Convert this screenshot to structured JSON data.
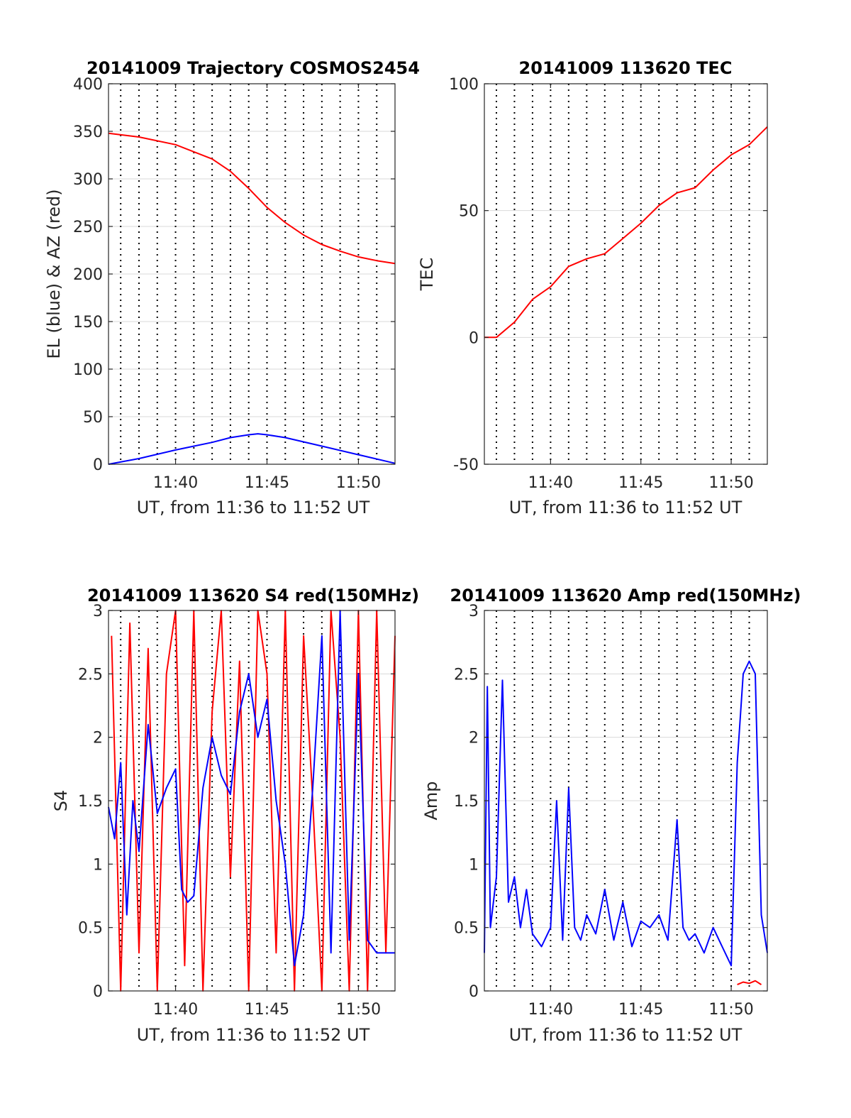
{
  "chart_data": [
    {
      "type": "line",
      "title": "20141009 Trajectory COSMOS2454",
      "xlabel": "UT, from 11:36 to 11:52 UT",
      "ylabel": "EL (blue) & AZ (red)",
      "xlim": [
        "11:36:20",
        "11:52:00"
      ],
      "ylim": [
        0,
        400
      ],
      "yticks": [
        0,
        50,
        100,
        150,
        200,
        250,
        300,
        350,
        400
      ],
      "xticks": [
        "11:40",
        "11:45",
        "11:50"
      ],
      "grid": "on",
      "series": [
        {
          "color": "#ff0000",
          "kind": "azimuth",
          "x": [
            "11:36:20",
            "11:38:00",
            "11:40:00",
            "11:42:00",
            "11:43:00",
            "11:44:00",
            "11:45:00",
            "11:46:00",
            "11:47:00",
            "11:48:00",
            "11:49:00",
            "11:50:00",
            "11:51:00",
            "11:52:00"
          ],
          "y": [
            348,
            344,
            336,
            321,
            308,
            290,
            270,
            254,
            241,
            231,
            224,
            218,
            214,
            211
          ]
        },
        {
          "color": "#0000ff",
          "kind": "elevation",
          "x": [
            "11:36:20",
            "11:38:00",
            "11:40:00",
            "11:42:00",
            "11:43:00",
            "11:44:00",
            "11:44:30",
            "11:45:00",
            "11:46:00",
            "11:48:00",
            "11:50:00",
            "11:52:00"
          ],
          "y": [
            0,
            6,
            15,
            23,
            28,
            31,
            32,
            31,
            28,
            19,
            10,
            1
          ]
        }
      ]
    },
    {
      "type": "line",
      "title": "20141009 113620 TEC",
      "xlabel": "UT, from 11:36 to 11:52 UT",
      "ylabel": "TEC",
      "xlim": [
        "11:36:20",
        "11:52:00"
      ],
      "ylim": [
        -50,
        100
      ],
      "yticks": [
        -50,
        0,
        50,
        100
      ],
      "xticks": [
        "11:40",
        "11:45",
        "11:50"
      ],
      "grid": "on",
      "series": [
        {
          "color": "#ff0000",
          "x": [
            "11:36:20",
            "11:37:00",
            "11:38:00",
            "11:39:00",
            "11:40:00",
            "11:41:00",
            "11:42:00",
            "11:43:00",
            "11:44:00",
            "11:45:00",
            "11:46:00",
            "11:47:00",
            "11:48:00",
            "11:49:00",
            "11:50:00",
            "11:51:00",
            "11:52:00"
          ],
          "y": [
            0,
            0,
            6,
            15,
            20,
            28,
            31,
            33,
            39,
            45,
            52,
            57,
            59,
            66,
            72,
            76,
            83
          ]
        }
      ]
    },
    {
      "type": "line",
      "title": "20141009 113620 S4 red(150MHz)",
      "xlabel": "UT, from 11:36 to 11:52 UT",
      "ylabel": "S4",
      "xlim": [
        "11:36:20",
        "11:52:00"
      ],
      "ylim": [
        0,
        3
      ],
      "yticks": [
        0,
        0.5,
        1,
        1.5,
        2,
        2.5,
        3
      ],
      "xticks": [
        "11:40",
        "11:45",
        "11:50"
      ],
      "grid": "on",
      "series": [
        {
          "color": "#ff0000",
          "x": [
            "11:36:30",
            "11:37:00",
            "11:37:30",
            "11:38:00",
            "11:38:30",
            "11:39:00",
            "11:39:30",
            "11:40:00",
            "11:40:30",
            "11:41:00",
            "11:41:30",
            "11:42:00",
            "11:42:30",
            "11:43:00",
            "11:43:30",
            "11:44:00",
            "11:44:30",
            "11:45:00",
            "11:45:30",
            "11:46:00",
            "11:46:30",
            "11:47:00",
            "11:47:30",
            "11:48:00",
            "11:48:30",
            "11:49:00",
            "11:49:30",
            "11:50:00",
            "11:50:30",
            "11:51:00",
            "11:51:30",
            "11:52:00"
          ],
          "y": [
            2.8,
            0,
            2.9,
            0.3,
            2.7,
            0,
            2.5,
            3.0,
            0.2,
            3.0,
            0,
            2.2,
            3.0,
            0.9,
            2.6,
            0,
            3.0,
            2.5,
            0.3,
            3.0,
            0,
            2.8,
            1.5,
            0,
            3.0,
            2.0,
            0,
            3.0,
            0,
            3.0,
            0.3,
            2.8
          ]
        },
        {
          "color": "#0000ff",
          "x": [
            "11:36:20",
            "11:36:40",
            "11:37:00",
            "11:37:20",
            "11:37:40",
            "11:38:00",
            "11:38:30",
            "11:39:00",
            "11:39:30",
            "11:40:00",
            "11:40:20",
            "11:40:40",
            "11:41:00",
            "11:41:30",
            "11:42:00",
            "11:42:30",
            "11:43:00",
            "11:43:30",
            "11:44:00",
            "11:44:30",
            "11:45:00",
            "11:45:30",
            "11:46:00",
            "11:46:30",
            "11:47:00",
            "11:47:30",
            "11:48:00",
            "11:48:30",
            "11:49:00",
            "11:49:30",
            "11:50:00",
            "11:50:30",
            "11:51:00",
            "11:51:30",
            "11:52:00"
          ],
          "y": [
            1.45,
            1.2,
            1.8,
            0.6,
            1.5,
            1.1,
            2.1,
            1.4,
            1.6,
            1.75,
            0.8,
            0.7,
            0.75,
            1.6,
            2.0,
            1.7,
            1.55,
            2.2,
            2.5,
            2.0,
            2.3,
            1.5,
            1.0,
            0.2,
            0.6,
            1.6,
            2.8,
            0.3,
            3.0,
            0.4,
            2.5,
            0.4,
            0.3,
            0.3,
            0.3
          ]
        }
      ]
    },
    {
      "type": "line",
      "title": "20141009 113620 Amp red(150MHz)",
      "xlabel": "UT, from 11:36 to 11:52 UT",
      "ylabel": "Amp",
      "xlim": [
        "11:36:20",
        "11:52:00"
      ],
      "ylim": [
        0,
        3
      ],
      "yticks": [
        0,
        0.5,
        1,
        1.5,
        2,
        2.5,
        3
      ],
      "xticks": [
        "11:40",
        "11:45",
        "11:50"
      ],
      "grid": "on",
      "series": [
        {
          "color": "#0000ff",
          "x": [
            "11:36:20",
            "11:36:30",
            "11:36:40",
            "11:37:00",
            "11:37:20",
            "11:37:40",
            "11:38:00",
            "11:38:20",
            "11:38:40",
            "11:39:00",
            "11:39:30",
            "11:40:00",
            "11:40:20",
            "11:40:40",
            "11:41:00",
            "11:41:20",
            "11:41:40",
            "11:42:00",
            "11:42:30",
            "11:43:00",
            "11:43:30",
            "11:44:00",
            "11:44:30",
            "11:45:00",
            "11:45:30",
            "11:46:00",
            "11:46:30",
            "11:47:00",
            "11:47:20",
            "11:47:40",
            "11:48:00",
            "11:48:30",
            "11:49:00",
            "11:49:30",
            "11:50:00",
            "11:50:20",
            "11:50:40",
            "11:51:00",
            "11:51:20",
            "11:51:40",
            "11:52:00"
          ],
          "y": [
            0.3,
            2.4,
            0.5,
            0.9,
            2.45,
            0.7,
            0.9,
            0.5,
            0.8,
            0.45,
            0.35,
            0.5,
            1.5,
            0.4,
            1.6,
            0.5,
            0.4,
            0.6,
            0.45,
            0.8,
            0.4,
            0.7,
            0.35,
            0.55,
            0.5,
            0.6,
            0.4,
            1.35,
            0.5,
            0.4,
            0.45,
            0.3,
            0.5,
            0.35,
            0.2,
            1.8,
            2.5,
            2.6,
            2.5,
            0.6,
            0.3
          ]
        },
        {
          "color": "#ff0000",
          "x": [
            "11:50:20",
            "11:50:40",
            "11:51:00",
            "11:51:20",
            "11:51:40"
          ],
          "y": [
            0.05,
            0.07,
            0.06,
            0.08,
            0.05
          ]
        }
      ]
    }
  ]
}
